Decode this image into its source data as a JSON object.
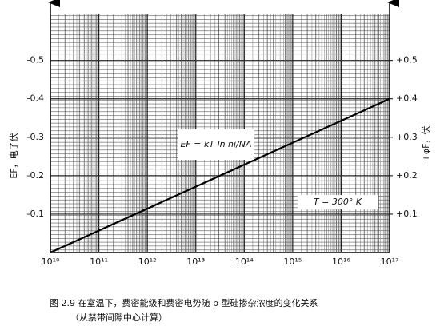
{
  "chart_data": {
    "type": "line",
    "y_label": "EF，电子伏",
    "y2_label": "+φF，伏",
    "annotations": [
      "EF = kT ln ni/NA",
      "T = 300° K"
    ],
    "caption": [
      "图 2.9  在室温下，费密能级和费密电势随 p 型硅掺杂浓度的变化关系",
      "（从禁带间隙中心计算）"
    ],
    "x": [
      10000000000,
      100000000000000000
    ],
    "values": [
      0,
      -0.4
    ],
    "color": "#000000",
    "xscale": "log",
    "xlim": [
      10000000000,
      100000000000000000
    ],
    "xticks": [
      {
        "value": 10000000000,
        "label": "10¹⁰"
      },
      {
        "value": 100000000000,
        "label": "10¹¹"
      },
      {
        "value": 1000000000000,
        "label": "10¹²"
      },
      {
        "value": 10000000000000,
        "label": "10¹³"
      },
      {
        "value": 100000000000000,
        "label": "10¹⁴"
      },
      {
        "value": 1000000000000000,
        "label": "10¹⁵"
      },
      {
        "value": 10000000000000000,
        "label": "10¹⁶"
      },
      {
        "value": 100000000000000000,
        "label": "10¹⁷"
      }
    ],
    "ylim": [
      0,
      -0.62
    ],
    "yticks": [
      -0.1,
      -0.2,
      -0.3,
      -0.4,
      -0.5
    ],
    "y2lim": [
      0,
      0.62
    ],
    "y2ticks": [
      {
        "value": 0.1,
        "label": "+0.1"
      },
      {
        "value": 0.2,
        "label": "+0.2"
      },
      {
        "value": 0.3,
        "label": "+0.3"
      },
      {
        "value": 0.4,
        "label": "+0.4"
      },
      {
        "value": 0.5,
        "label": "+0.5"
      }
    ],
    "grid": true
  }
}
